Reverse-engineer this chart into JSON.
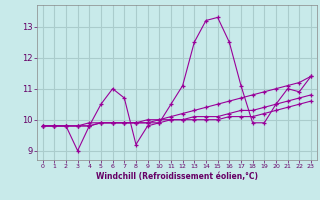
{
  "xlabel": "Windchill (Refroidissement éolien,°C)",
  "background_color": "#c8eaea",
  "grid_color": "#aacccc",
  "line_color": "#990099",
  "xlim": [
    -0.5,
    23.5
  ],
  "ylim": [
    8.7,
    13.7
  ],
  "xticks": [
    0,
    1,
    2,
    3,
    4,
    5,
    6,
    7,
    8,
    9,
    10,
    11,
    12,
    13,
    14,
    15,
    16,
    17,
    18,
    19,
    20,
    21,
    22,
    23
  ],
  "yticks": [
    9,
    10,
    11,
    12,
    13
  ],
  "series": [
    {
      "x": [
        0,
        1,
        2,
        3,
        4,
        5,
        6,
        7,
        8,
        9,
        10,
        11,
        12,
        13,
        14,
        15,
        16,
        17,
        18,
        19,
        20,
        21,
        22,
        23
      ],
      "y": [
        9.8,
        9.8,
        9.8,
        9.0,
        9.8,
        10.5,
        11.0,
        10.7,
        9.2,
        9.8,
        9.9,
        10.5,
        11.1,
        12.5,
        13.2,
        13.3,
        12.5,
        11.1,
        9.9,
        9.9,
        10.5,
        11.0,
        10.9,
        11.4
      ]
    },
    {
      "x": [
        0,
        1,
        2,
        3,
        4,
        5,
        6,
        7,
        8,
        9,
        10,
        11,
        12,
        13,
        14,
        15,
        16,
        17,
        18,
        19,
        20,
        21,
        22,
        23
      ],
      "y": [
        9.8,
        9.8,
        9.8,
        9.8,
        9.8,
        9.9,
        9.9,
        9.9,
        9.9,
        9.9,
        10.0,
        10.0,
        10.0,
        10.1,
        10.1,
        10.1,
        10.2,
        10.3,
        10.3,
        10.4,
        10.5,
        10.6,
        10.7,
        10.8
      ]
    },
    {
      "x": [
        0,
        1,
        2,
        3,
        4,
        5,
        6,
        7,
        8,
        9,
        10,
        11,
        12,
        13,
        14,
        15,
        16,
        17,
        18,
        19,
        20,
        21,
        22,
        23
      ],
      "y": [
        9.8,
        9.8,
        9.8,
        9.8,
        9.9,
        9.9,
        9.9,
        9.9,
        9.9,
        10.0,
        10.0,
        10.1,
        10.2,
        10.3,
        10.4,
        10.5,
        10.6,
        10.7,
        10.8,
        10.9,
        11.0,
        11.1,
        11.2,
        11.4
      ]
    },
    {
      "x": [
        0,
        1,
        2,
        3,
        4,
        5,
        6,
        7,
        8,
        9,
        10,
        11,
        12,
        13,
        14,
        15,
        16,
        17,
        18,
        19,
        20,
        21,
        22,
        23
      ],
      "y": [
        9.8,
        9.8,
        9.8,
        9.8,
        9.8,
        9.9,
        9.9,
        9.9,
        9.9,
        9.9,
        9.9,
        10.0,
        10.0,
        10.0,
        10.0,
        10.0,
        10.1,
        10.1,
        10.1,
        10.2,
        10.3,
        10.4,
        10.5,
        10.6
      ]
    }
  ]
}
